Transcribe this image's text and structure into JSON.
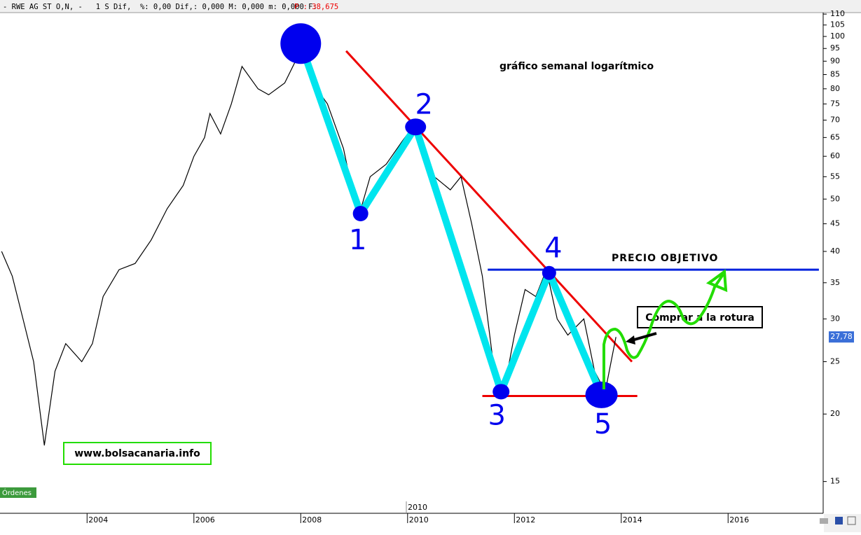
{
  "header": {
    "text": "- RWE AG ST O,N, -   1 S Dif,  %: 0,00 Dif,: 0,000 M: 0,000 m: 0,000 F:",
    "price": "P : 38,675"
  },
  "chart_data": {
    "type": "line",
    "log_scale": true,
    "title": "gráfico semanal logarítmico",
    "annotations": [
      "PRECIO OBJETIVO",
      "Comprar a la rotura",
      "www.bolsacanaria.info"
    ],
    "orders_tag": "Órdenes",
    "marker_label": "2010",
    "xlim": [
      2002.37,
      2017.78
    ],
    "xticks": [
      2004,
      2006,
      2008,
      2010,
      2012,
      2014,
      2016
    ],
    "ylim": [
      13.1,
      110.7
    ],
    "yticks": [
      15,
      20,
      25,
      30,
      35,
      40,
      45,
      50,
      55,
      60,
      65,
      70,
      75,
      80,
      85,
      90,
      95,
      100,
      105,
      110
    ],
    "series": [
      {
        "color": "#000000",
        "x": [
          2002.4,
          2002.6,
          2002.8,
          2003.0,
          2003.2,
          2003.4,
          2003.6,
          2003.9,
          2004.1,
          2004.3,
          2004.6,
          2004.9,
          2005.2,
          2005.5,
          2005.8,
          2006.0,
          2006.2,
          2006.3,
          2006.5,
          2006.7,
          2006.9,
          2007.2,
          2007.4,
          2007.7,
          2007.9,
          2008.0,
          2008.3,
          2008.5,
          2008.8,
          2009.0,
          2009.1,
          2009.3,
          2009.6,
          2009.9,
          2010.1,
          2010.3,
          2010.5,
          2010.8,
          2011.0,
          2011.2,
          2011.4,
          2011.6,
          2011.8,
          2012.0,
          2012.2,
          2012.4,
          2012.6,
          2012.8,
          2013.0,
          2013.3,
          2013.5,
          2013.7,
          2013.9
        ],
        "values": [
          40,
          36,
          30,
          25,
          17.5,
          24,
          27,
          25,
          27,
          33,
          37,
          38,
          42,
          48,
          53,
          60,
          65,
          72,
          66,
          75,
          88,
          80,
          78,
          82,
          90,
          95,
          80,
          75,
          62,
          50,
          47,
          55,
          58,
          64,
          68,
          60,
          55,
          52,
          55,
          45,
          36,
          25,
          22,
          28,
          34,
          33,
          37,
          30,
          28,
          30,
          24,
          22,
          27.78
        ]
      }
    ],
    "last_price": {
      "value": 27.78,
      "label": "27,78"
    },
    "wave_points": {
      "color": "#00e5ee",
      "point_color": "#0000ee",
      "x": [
        2008.0,
        2009.12,
        2010.15,
        2011.75,
        2012.65,
        2013.63
      ],
      "values": [
        97,
        47,
        68,
        22,
        36.5,
        21.7
      ],
      "labels": [
        null,
        "1",
        "2",
        "3",
        "4",
        "5"
      ]
    },
    "resistance": {
      "color": "#ee0000",
      "x": [
        2008.85,
        2014.2
      ],
      "values": [
        94,
        25
      ]
    },
    "support": {
      "color": "#ee0000",
      "x": [
        2011.4,
        2014.3
      ],
      "values": [
        21.6,
        21.6
      ]
    },
    "target": {
      "color": "#0022dd",
      "x": [
        2011.5,
        2017.7
      ],
      "values": [
        37,
        37
      ]
    }
  }
}
